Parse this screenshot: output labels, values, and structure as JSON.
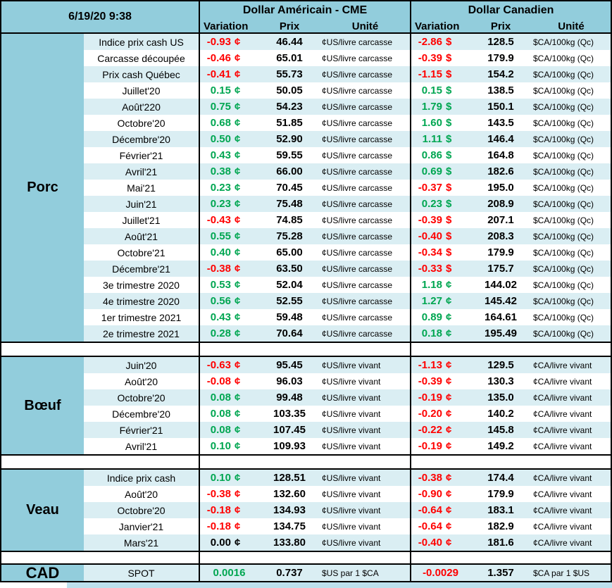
{
  "report": {
    "timestamp": "6/19/20 9:38",
    "header": {
      "us_group": "Dollar Américain - CME",
      "ca_group": "Dollar Canadien",
      "sub": {
        "variation": "Variation",
        "prix": "Prix",
        "unite": "Unité"
      }
    },
    "colors": {
      "header_bg": "#92CDDC",
      "band_bg": "#DAEEF3",
      "positive": "#00A651",
      "negative": "#FF0000",
      "strip": "#BDE0ED"
    },
    "sections": [
      {
        "category": "Porc",
        "rows": [
          {
            "label": "Indice prix cash US",
            "us": [
              "-0.93",
              "¢",
              "46.44",
              "¢US/livre carcasse"
            ],
            "ca": [
              "-2.86",
              "$",
              "128.5",
              "$CA/100kg (Qc)"
            ]
          },
          {
            "label": "Carcasse découpée",
            "us": [
              "-0.46",
              "¢",
              "65.01",
              "¢US/livre carcasse"
            ],
            "ca": [
              "-0.39",
              "$",
              "179.9",
              "$CA/100kg (Qc)"
            ]
          },
          {
            "label": "Prix cash Québec",
            "us": [
              "-0.41",
              "¢",
              "55.73",
              "¢US/livre carcasse"
            ],
            "ca": [
              "-1.15",
              "$",
              "154.2",
              "$CA/100kg (Qc)"
            ]
          },
          {
            "label": "Juillet'20",
            "us": [
              "0.15",
              "¢",
              "50.05",
              "¢US/livre carcasse"
            ],
            "ca": [
              "0.15",
              "$",
              "138.5",
              "$CA/100kg (Qc)"
            ]
          },
          {
            "label": "Août'220",
            "us": [
              "0.75",
              "¢",
              "54.23",
              "¢US/livre carcasse"
            ],
            "ca": [
              "1.79",
              "$",
              "150.1",
              "$CA/100kg (Qc)"
            ]
          },
          {
            "label": "Octobre'20",
            "us": [
              "0.68",
              "¢",
              "51.85",
              "¢US/livre carcasse"
            ],
            "ca": [
              "1.60",
              "$",
              "143.5",
              "$CA/100kg (Qc)"
            ]
          },
          {
            "label": "Décembre'20",
            "us": [
              "0.50",
              "¢",
              "52.90",
              "¢US/livre carcasse"
            ],
            "ca": [
              "1.11",
              "$",
              "146.4",
              "$CA/100kg (Qc)"
            ]
          },
          {
            "label": "Février'21",
            "us": [
              "0.43",
              "¢",
              "59.55",
              "¢US/livre carcasse"
            ],
            "ca": [
              "0.86",
              "$",
              "164.8",
              "$CA/100kg (Qc)"
            ]
          },
          {
            "label": "Avril'21",
            "us": [
              "0.38",
              "¢",
              "66.00",
              "¢US/livre carcasse"
            ],
            "ca": [
              "0.69",
              "$",
              "182.6",
              "$CA/100kg (Qc)"
            ]
          },
          {
            "label": "Mai'21",
            "us": [
              "0.23",
              "¢",
              "70.45",
              "¢US/livre carcasse"
            ],
            "ca": [
              "-0.37",
              "$",
              "195.0",
              "$CA/100kg (Qc)"
            ]
          },
          {
            "label": "Juin'21",
            "us": [
              "0.23",
              "¢",
              "75.48",
              "¢US/livre carcasse"
            ],
            "ca": [
              "0.23",
              "$",
              "208.9",
              "$CA/100kg (Qc)"
            ]
          },
          {
            "label": "Juillet'21",
            "us": [
              "-0.43",
              "¢",
              "74.85",
              "¢US/livre carcasse"
            ],
            "ca": [
              "-0.39",
              "$",
              "207.1",
              "$CA/100kg (Qc)"
            ]
          },
          {
            "label": "Août'21",
            "us": [
              "0.55",
              "¢",
              "75.28",
              "¢US/livre carcasse"
            ],
            "ca": [
              "-0.40",
              "$",
              "208.3",
              "$CA/100kg (Qc)"
            ]
          },
          {
            "label": "Octobre'21",
            "us": [
              "0.40",
              "¢",
              "65.00",
              "¢US/livre carcasse"
            ],
            "ca": [
              "-0.34",
              "$",
              "179.9",
              "$CA/100kg (Qc)"
            ]
          },
          {
            "label": "Décembre'21",
            "us": [
              "-0.38",
              "¢",
              "63.50",
              "¢US/livre carcasse"
            ],
            "ca": [
              "-0.33",
              "$",
              "175.7",
              "$CA/100kg (Qc)"
            ]
          },
          {
            "label": "3e trimestre 2020",
            "us": [
              "0.53",
              "¢",
              "52.04",
              "¢US/livre carcasse"
            ],
            "ca": [
              "1.18",
              "¢",
              "144.02",
              "$CA/100kg (Qc)"
            ]
          },
          {
            "label": "4e trimestre 2020",
            "us": [
              "0.56",
              "¢",
              "52.55",
              "¢US/livre carcasse"
            ],
            "ca": [
              "1.27",
              "¢",
              "145.42",
              "$CA/100kg (Qc)"
            ]
          },
          {
            "label": "1er trimestre 2021",
            "us": [
              "0.43",
              "¢",
              "59.48",
              "¢US/livre carcasse"
            ],
            "ca": [
              "0.89",
              "¢",
              "164.61",
              "$CA/100kg (Qc)"
            ]
          },
          {
            "label": "2e trimestre 2021",
            "us": [
              "0.28",
              "¢",
              "70.64",
              "¢US/livre carcasse"
            ],
            "ca": [
              "0.18",
              "¢",
              "195.49",
              "$CA/100kg (Qc)"
            ]
          }
        ]
      },
      {
        "category": "Bœuf",
        "rows": [
          {
            "label": "Juin'20",
            "us": [
              "-0.63",
              "¢",
              "95.45",
              "¢US/livre vivant"
            ],
            "ca": [
              "-1.13",
              "¢",
              "129.5",
              "¢CA/livre vivant"
            ]
          },
          {
            "label": "Août'20",
            "us": [
              "-0.08",
              "¢",
              "96.03",
              "¢US/livre vivant"
            ],
            "ca": [
              "-0.39",
              "¢",
              "130.3",
              "¢CA/livre vivant"
            ]
          },
          {
            "label": "Octobre'20",
            "us": [
              "0.08",
              "¢",
              "99.48",
              "¢US/livre vivant"
            ],
            "ca": [
              "-0.19",
              "¢",
              "135.0",
              "¢CA/livre vivant"
            ]
          },
          {
            "label": "Décembre'20",
            "us": [
              "0.08",
              "¢",
              "103.35",
              "¢US/livre vivant"
            ],
            "ca": [
              "-0.20",
              "¢",
              "140.2",
              "¢CA/livre vivant"
            ]
          },
          {
            "label": "Février'21",
            "us": [
              "0.08",
              "¢",
              "107.45",
              "¢US/livre vivant"
            ],
            "ca": [
              "-0.22",
              "¢",
              "145.8",
              "¢CA/livre vivant"
            ]
          },
          {
            "label": "Avril'21",
            "us": [
              "0.10",
              "¢",
              "109.93",
              "¢US/livre vivant"
            ],
            "ca": [
              "-0.19",
              "¢",
              "149.2",
              "¢CA/livre vivant"
            ]
          }
        ]
      },
      {
        "category": "Veau",
        "rows": [
          {
            "label": "Indice prix cash",
            "us": [
              "0.10",
              "¢",
              "128.51",
              "¢US/livre vivant"
            ],
            "ca": [
              "-0.38",
              "¢",
              "174.4",
              "¢CA/livre vivant"
            ]
          },
          {
            "label": "Août'20",
            "us": [
              "-0.38",
              "¢",
              "132.60",
              "¢US/livre vivant"
            ],
            "ca": [
              "-0.90",
              "¢",
              "179.9",
              "¢CA/livre vivant"
            ]
          },
          {
            "label": "Octobre'20",
            "us": [
              "-0.18",
              "¢",
              "134.93",
              "¢US/livre vivant"
            ],
            "ca": [
              "-0.64",
              "¢",
              "183.1",
              "¢CA/livre vivant"
            ]
          },
          {
            "label": "Janvier'21",
            "us": [
              "-0.18",
              "¢",
              "134.75",
              "¢US/livre vivant"
            ],
            "ca": [
              "-0.64",
              "¢",
              "182.9",
              "¢CA/livre vivant"
            ]
          },
          {
            "label": "Mars'21",
            "us": [
              "0.00",
              "¢",
              "133.80",
              "¢US/livre vivant"
            ],
            "ca": [
              "-0.40",
              "¢",
              "181.6",
              "¢CA/livre vivant"
            ]
          }
        ]
      },
      {
        "category": "CAD",
        "rows": [
          {
            "label": "SPOT",
            "us": [
              "0.0016",
              "",
              "0.737",
              "$US par 1 $CA"
            ],
            "ca": [
              "-0.0029",
              "",
              "1.357",
              "$CA par 1 $US"
            ]
          }
        ]
      }
    ]
  }
}
